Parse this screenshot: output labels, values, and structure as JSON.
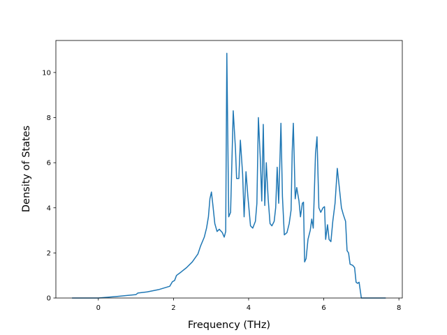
{
  "chart_data": {
    "type": "line",
    "xlabel": "Frequency (THz)",
    "ylabel": "Density of States",
    "color": "#1f77b4",
    "xlim": [
      -1.13,
      8.09
    ],
    "ylim": [
      0,
      11.42
    ],
    "xticks": [
      0,
      2,
      4,
      6,
      8
    ],
    "yticks": [
      0,
      2,
      4,
      6,
      8,
      10
    ],
    "x": [
      -0.7,
      0,
      0.5,
      1.0,
      1.05,
      1.3,
      1.6,
      1.9,
      1.97,
      2.03,
      2.08,
      2.2,
      2.35,
      2.5,
      2.65,
      2.72,
      2.82,
      2.88,
      2.93,
      2.97,
      3.01,
      3.05,
      3.1,
      3.16,
      3.22,
      3.3,
      3.35,
      3.39,
      3.42,
      3.47,
      3.52,
      3.59,
      3.65,
      3.68,
      3.74,
      3.78,
      3.84,
      3.88,
      3.93,
      3.98,
      4.05,
      4.11,
      4.18,
      4.22,
      4.26,
      4.31,
      4.35,
      4.39,
      4.43,
      4.47,
      4.52,
      4.57,
      4.62,
      4.68,
      4.72,
      4.76,
      4.8,
      4.86,
      4.9,
      4.95,
      5.02,
      5.08,
      5.13,
      5.16,
      5.19,
      5.24,
      5.28,
      5.34,
      5.38,
      5.43,
      5.46,
      5.49,
      5.53,
      5.58,
      5.64,
      5.68,
      5.72,
      5.78,
      5.82,
      5.87,
      5.92,
      5.98,
      6.02,
      6.05,
      6.1,
      6.14,
      6.19,
      6.24,
      6.3,
      6.36,
      6.42,
      6.47,
      6.52,
      6.58,
      6.62,
      6.66,
      6.7,
      6.77,
      6.82,
      6.86,
      6.9,
      6.94,
      7.0,
      7.65
    ],
    "values": [
      0,
      0,
      0.07,
      0.15,
      0.22,
      0.27,
      0.37,
      0.52,
      0.72,
      0.78,
      1.0,
      1.15,
      1.35,
      1.6,
      1.95,
      2.3,
      2.7,
      3.1,
      3.6,
      4.4,
      4.7,
      4.1,
      3.3,
      2.95,
      3.05,
      2.9,
      2.7,
      2.95,
      10.85,
      3.6,
      3.8,
      8.3,
      6.6,
      5.3,
      5.3,
      7.0,
      5.5,
      3.6,
      5.6,
      4.5,
      3.2,
      3.1,
      3.4,
      4.2,
      8.0,
      6.2,
      4.3,
      7.7,
      4.1,
      6.0,
      4.4,
      3.3,
      3.2,
      3.4,
      4.0,
      5.8,
      4.2,
      7.75,
      4.5,
      2.8,
      2.9,
      3.3,
      3.9,
      6.5,
      7.75,
      4.4,
      4.9,
      4.3,
      3.6,
      4.2,
      4.25,
      1.6,
      1.75,
      2.6,
      3.0,
      3.5,
      3.1,
      6.4,
      7.15,
      4.0,
      3.8,
      4.0,
      4.05,
      2.6,
      3.25,
      2.6,
      2.5,
      3.4,
      4.2,
      5.75,
      4.8,
      4.0,
      3.7,
      3.4,
      2.1,
      2.0,
      1.5,
      1.45,
      1.35,
      0.7,
      0.65,
      0.7,
      0,
      0
    ]
  }
}
